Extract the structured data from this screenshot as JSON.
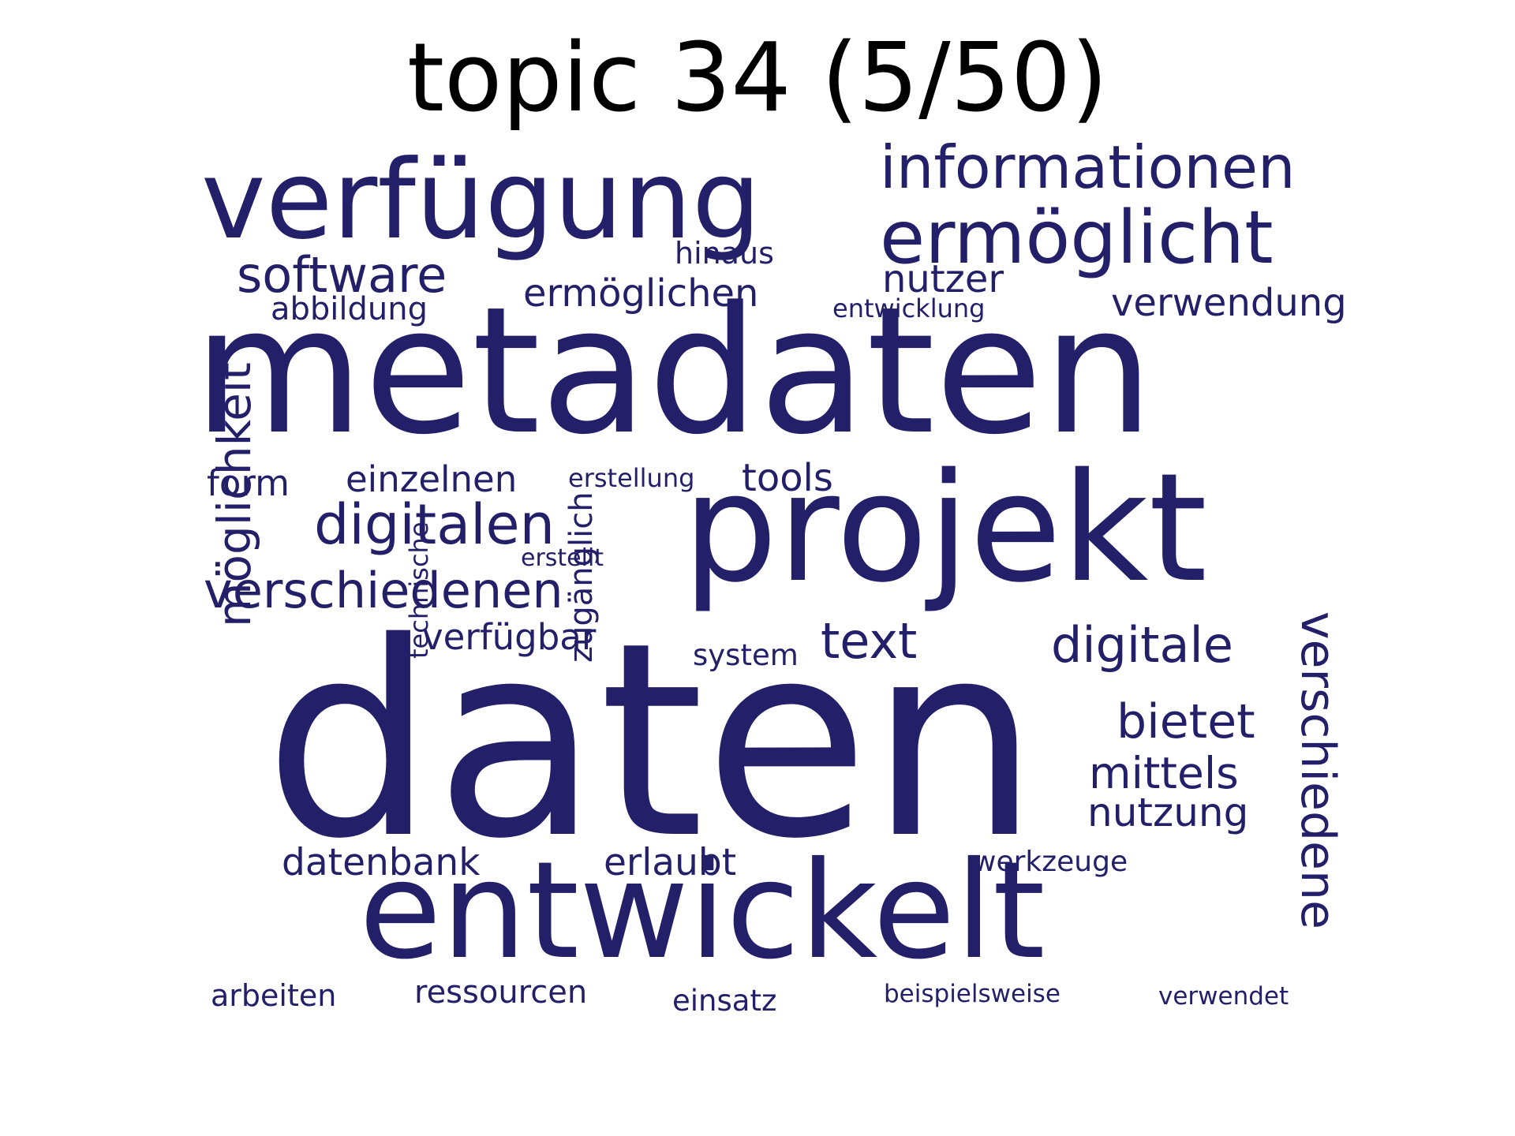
{
  "title": "topic 34 (5/50)",
  "word_color": "#231f68",
  "words": [
    {
      "text": "daten"
    },
    {
      "text": "metadaten"
    },
    {
      "text": "projekt"
    },
    {
      "text": "entwickelt"
    },
    {
      "text": "verfügung"
    },
    {
      "text": "ermöglicht"
    },
    {
      "text": "informationen"
    },
    {
      "text": "digitalen"
    },
    {
      "text": "verschiedenen"
    },
    {
      "text": "software"
    },
    {
      "text": "digitale"
    },
    {
      "text": "text"
    },
    {
      "text": "verschiedene"
    },
    {
      "text": "möglichkeit"
    },
    {
      "text": "bietet"
    },
    {
      "text": "mittels"
    },
    {
      "text": "ermöglichen"
    },
    {
      "text": "verwendung"
    },
    {
      "text": "nutzer"
    },
    {
      "text": "tools"
    },
    {
      "text": "einzelnen"
    },
    {
      "text": "verfügbar"
    },
    {
      "text": "datenbank"
    },
    {
      "text": "nutzung"
    },
    {
      "text": "erlaubt"
    },
    {
      "text": "form"
    },
    {
      "text": "zugänglich"
    },
    {
      "text": "abbildung"
    },
    {
      "text": "hinaus"
    },
    {
      "text": "arbeiten"
    },
    {
      "text": "ressourcen"
    },
    {
      "text": "einsatz"
    },
    {
      "text": "system"
    },
    {
      "text": "werkzeuge"
    },
    {
      "text": "entwicklung"
    },
    {
      "text": "erstellung"
    },
    {
      "text": "technische"
    },
    {
      "text": "erstellt"
    },
    {
      "text": "beispielsweise"
    },
    {
      "text": "verwendet"
    }
  ]
}
